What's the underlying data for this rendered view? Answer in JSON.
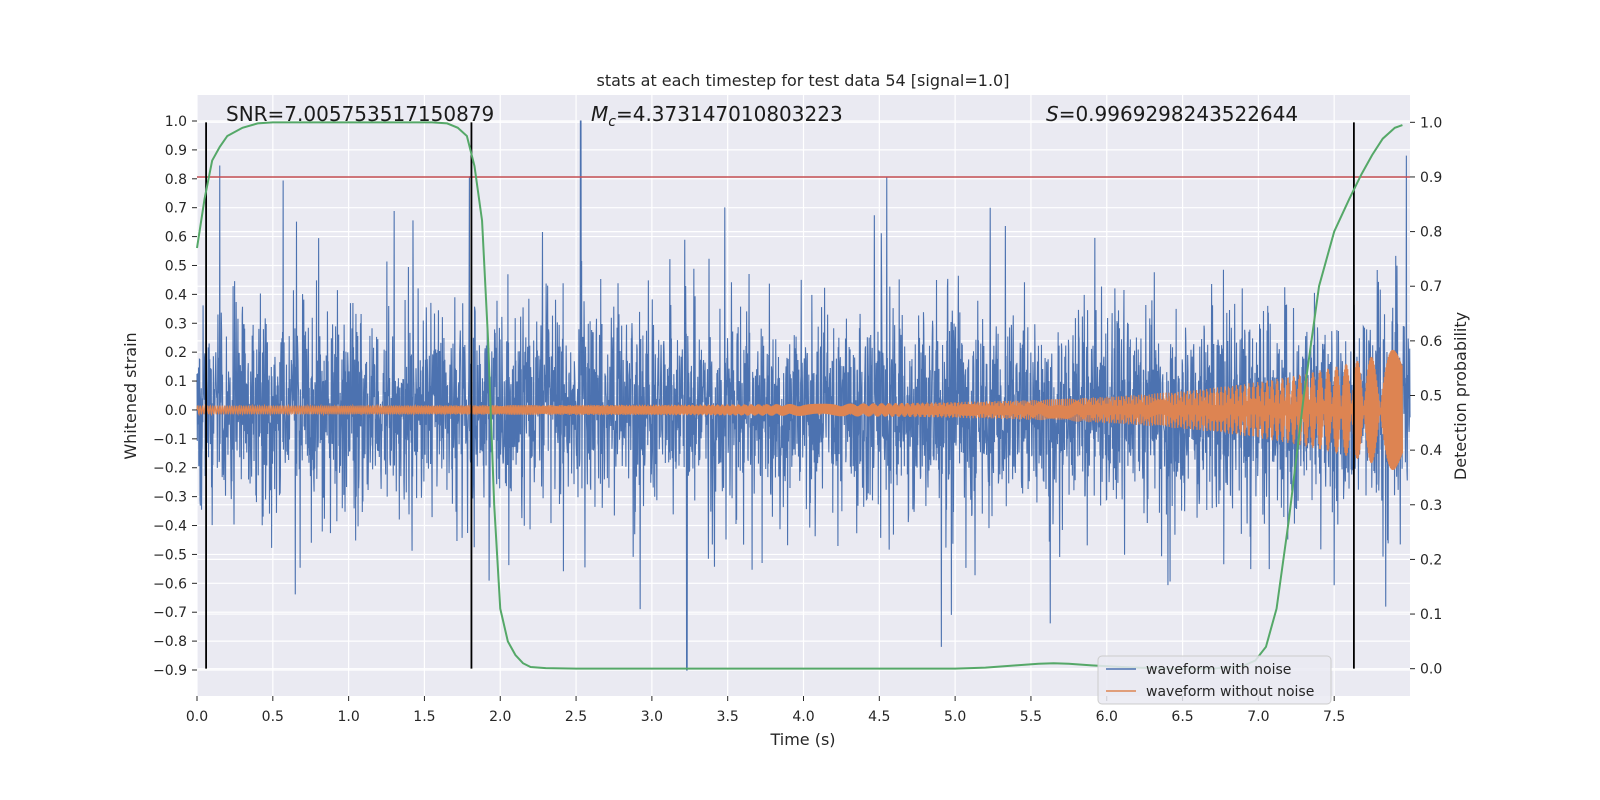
{
  "chart_data": {
    "type": "line",
    "title": "stats at each timestep for test data 54 [signal=1.0]",
    "xlabel": "Time (s)",
    "ylabel_left": "Whitened strain",
    "ylabel_right": "Detection probability",
    "xlim": [
      0.0,
      8.0
    ],
    "ylim_left": [
      -0.99,
      1.09
    ],
    "ylim_right": [
      -0.05,
      1.05
    ],
    "x_ticks": [
      "0.0",
      "0.5",
      "1.0",
      "1.5",
      "2.0",
      "2.5",
      "3.0",
      "3.5",
      "4.0",
      "4.5",
      "5.0",
      "5.5",
      "6.0",
      "6.5",
      "7.0",
      "7.5"
    ],
    "y_ticks_left": [
      "1.0",
      "0.9",
      "0.8",
      "0.7",
      "0.6",
      "0.5",
      "0.4",
      "0.3",
      "0.2",
      "0.1",
      "0.0",
      "−0.1",
      "−0.2",
      "−0.3",
      "−0.4",
      "−0.5",
      "−0.6",
      "−0.7",
      "−0.8",
      "−0.9"
    ],
    "y_ticks_right": [
      "1.0",
      "0.9",
      "0.8",
      "0.7",
      "0.6",
      "0.5",
      "0.4",
      "0.3",
      "0.2",
      "0.1",
      "0.0"
    ],
    "annotations": {
      "snr": "SNR=7.005753517150879",
      "mc_symbol": "M",
      "mc_sub": "c",
      "mc_value": "=4.373147010803223",
      "s_symbol": "S",
      "s_value": "=0.9969298243522644"
    },
    "threshold": 0.9,
    "vertical_lines_x": [
      0.06,
      1.81,
      7.63
    ],
    "legend": {
      "position": "lower-right",
      "entries": [
        "waveform with noise",
        "waveform without noise"
      ]
    },
    "colors": {
      "noisy": "#4c72b0",
      "clean": "#dd8452",
      "probability": "#55a868",
      "threshold": "#c44e52",
      "vlines": "#000000",
      "background": "#eaeaf2",
      "grid": "#ffffff"
    },
    "series": [
      {
        "name": "Detection probability",
        "axis": "right",
        "x": [
          0.0,
          0.05,
          0.1,
          0.15,
          0.2,
          0.3,
          0.4,
          0.5,
          0.7,
          1.0,
          1.3,
          1.55,
          1.65,
          1.72,
          1.78,
          1.83,
          1.88,
          1.92,
          1.96,
          2.0,
          2.05,
          2.1,
          2.15,
          2.2,
          2.3,
          2.5,
          3.0,
          3.5,
          4.0,
          4.5,
          5.0,
          5.2,
          5.4,
          5.55,
          5.65,
          5.75,
          5.9,
          6.1,
          6.4,
          6.7,
          6.9,
          6.98,
          7.05,
          7.12,
          7.2,
          7.3,
          7.4,
          7.5,
          7.6,
          7.68,
          7.75,
          7.82,
          7.9,
          7.95
        ],
        "y": [
          0.77,
          0.86,
          0.93,
          0.955,
          0.975,
          0.99,
          0.998,
          1.0,
          1.0,
          1.0,
          1.0,
          1.0,
          0.998,
          0.99,
          0.975,
          0.92,
          0.82,
          0.6,
          0.3,
          0.11,
          0.05,
          0.025,
          0.01,
          0.003,
          0.001,
          0.0,
          0.0,
          0.0,
          0.0,
          0.0,
          0.0,
          0.002,
          0.006,
          0.009,
          0.01,
          0.009,
          0.006,
          0.003,
          0.0,
          0.0,
          0.005,
          0.015,
          0.04,
          0.11,
          0.27,
          0.5,
          0.7,
          0.8,
          0.86,
          0.905,
          0.94,
          0.97,
          0.99,
          0.995
        ]
      },
      {
        "name": "waveform with noise",
        "axis": "left",
        "envelope_abs": 0.45,
        "peak_max": 1.0,
        "peak_min": -0.9,
        "peak_max_t": 2.53,
        "peak_min_t": 3.23
      },
      {
        "name": "waveform without noise",
        "axis": "left",
        "amplitude_start": 0.015,
        "amplitude_end": 0.2,
        "t_end": 7.95
      }
    ]
  }
}
